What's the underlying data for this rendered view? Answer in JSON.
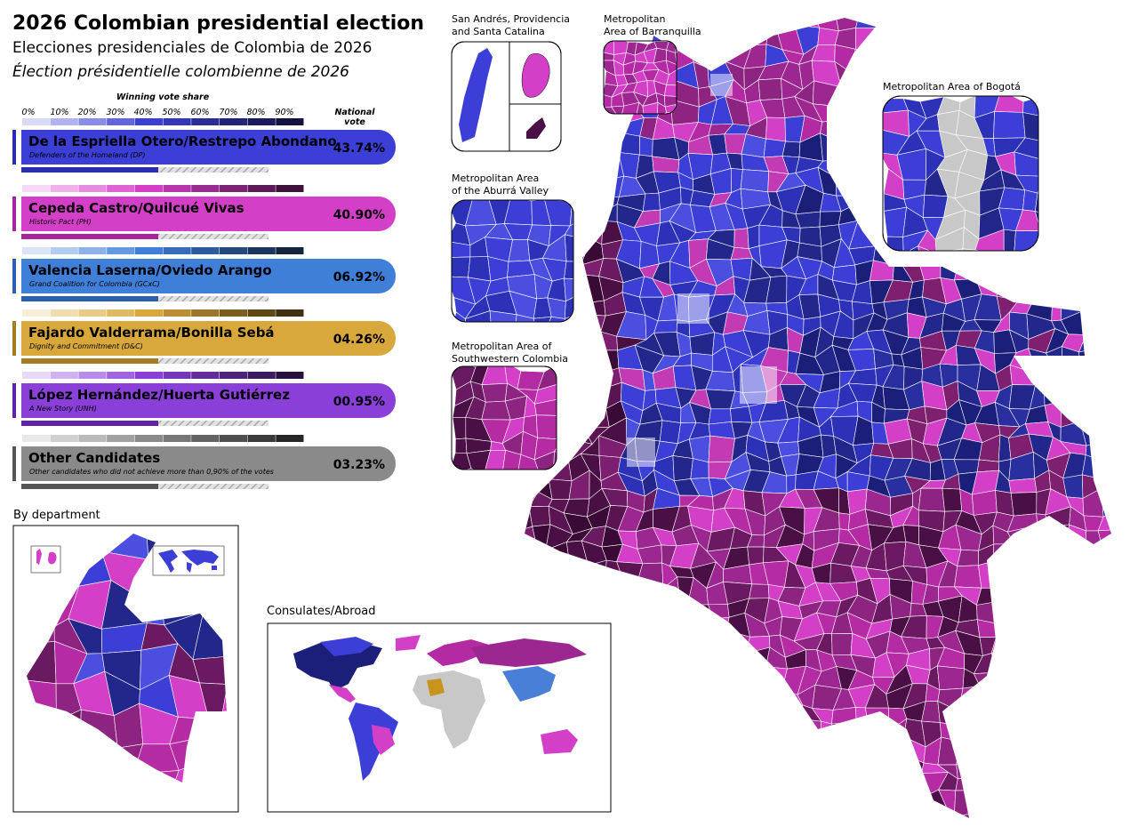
{
  "header": {
    "title": "2026 Colombian presidential election",
    "subtitle": "Elecciones presidenciales de Colombia de 2026",
    "subtitle_fr": "Élection présidentielle colombienne de 2026"
  },
  "legend": {
    "scale_title": "Winning vote share",
    "scale": [
      "0%",
      "10%",
      "20%",
      "30%",
      "40%",
      "50%",
      "60%",
      "70%",
      "80%",
      "90%"
    ],
    "national_vote": [
      "National",
      "vote"
    ]
  },
  "candidates": [
    {
      "name": "De la Espriella Otero/Restrepo Abondano",
      "party": "Defenders of the Homeland (DP)",
      "vote": "43.74%"
    },
    {
      "name": "Cepeda Castro/Quilcué Vivas",
      "party": "Historic Pact (PH)",
      "vote": "40.90%"
    },
    {
      "name": "Valencia Laserna/Oviedo Arango",
      "party": "Grand Coalition for Colombia (GCxC)",
      "vote": "06.92%"
    },
    {
      "name": "Fajardo Valderrama/Bonilla Sebá",
      "party": "Dignity and Commitment (D&C)",
      "vote": "04.26%"
    },
    {
      "name": "López Hernández/Huerta Gutiérrez",
      "party": "A New Story (UNH)",
      "vote": "00.95%"
    },
    {
      "name": "Other Candidates",
      "party": "Other candidates who did not achieve more than 0,90% of the votes",
      "vote": "03.23%"
    }
  ],
  "insets": [
    {
      "label": [
        "San Andrés, Providencia",
        "and Santa Catalina"
      ]
    },
    {
      "label": [
        "Metropolitan",
        "Area of Barranquilla"
      ]
    },
    {
      "label": [
        "Metropolitan Area of Bogotá"
      ]
    },
    {
      "label": [
        "Metropolitan Area",
        "of the Aburrá Valley"
      ]
    },
    {
      "label": [
        "Metropolitan Area of",
        "Southwestern Colombia"
      ]
    }
  ],
  "by_department": "By department",
  "abroad": "Consulates/Abroad"
}
